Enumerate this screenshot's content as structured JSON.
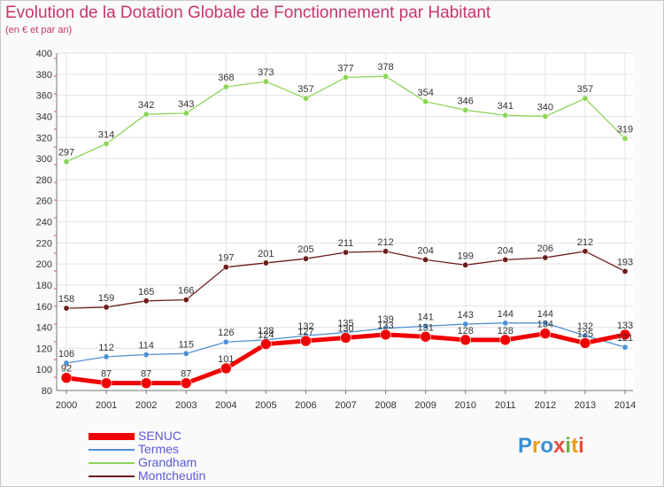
{
  "header": {
    "title": "Evolution de la Dotation Globale de Fonctionnement par Habitant",
    "subtitle": "(en € et par an)"
  },
  "logo": {
    "text": "Proxiti",
    "colors": [
      "#3a8fd6",
      "#f39c12",
      "#6ab04c",
      "#e74c3c"
    ]
  },
  "chart_data": {
    "type": "line",
    "title": "Evolution de la Dotation Globale de Fonctionnement par Habitant",
    "subtitle": "(en € et par an)",
    "xlabel": "",
    "ylabel": "",
    "ylim": [
      80,
      400
    ],
    "yticks": [
      80,
      100,
      120,
      140,
      160,
      180,
      200,
      220,
      240,
      260,
      280,
      300,
      320,
      340,
      360,
      380,
      400
    ],
    "grid": true,
    "legend_position": "bottom-left",
    "x": [
      "2000",
      "2001",
      "2002",
      "2003",
      "2004",
      "2005",
      "2006",
      "2007",
      "2008",
      "2009",
      "2010",
      "2011",
      "2012",
      "2013",
      "2014"
    ],
    "series": [
      {
        "name": "Montcheutin",
        "color": "#6b1c1c",
        "values": [
          158,
          159,
          165,
          166,
          197,
          201,
          205,
          211,
          212,
          204,
          199,
          204,
          206,
          212,
          193
        ],
        "labels": [
          "158",
          "159",
          "165",
          "166",
          "197",
          "201",
          "205",
          "211",
          "212",
          "204",
          "199",
          "204",
          "206",
          "212",
          "193"
        ]
      },
      {
        "name": "Grandham",
        "color": "#8ed45a",
        "values": [
          297,
          314,
          342,
          343,
          368,
          373,
          357,
          377,
          378,
          354,
          346,
          341,
          340,
          357,
          319
        ],
        "labels": [
          "297",
          "314",
          "342",
          "343",
          "368",
          "373",
          "357",
          "377",
          "378",
          "354",
          "346",
          "341",
          "340",
          "357",
          "319"
        ]
      },
      {
        "name": "Termes",
        "color": "#4f8fd1",
        "values": [
          106,
          112,
          114,
          115,
          126,
          128,
          132,
          135,
          139,
          141,
          143,
          144,
          144,
          132,
          121
        ],
        "labels": [
          "106",
          "112",
          "114",
          "115",
          "126",
          "128",
          "132",
          "135",
          "139",
          "141",
          "143",
          "144",
          "144",
          "132",
          "121"
        ]
      },
      {
        "name": "SENUC",
        "color": "#f00000",
        "values": [
          92,
          87,
          87,
          87,
          101,
          124,
          127,
          130,
          133,
          131,
          128,
          128,
          134,
          125,
          133
        ],
        "labels": [
          "92",
          "87",
          "87",
          "87",
          "101",
          "124",
          "127",
          "130",
          "133",
          "131",
          "128",
          "128",
          "134",
          "125",
          "133"
        ]
      }
    ],
    "legend_order": [
      "SENUC",
      "Termes",
      "Grandham",
      "Montcheutin"
    ]
  }
}
